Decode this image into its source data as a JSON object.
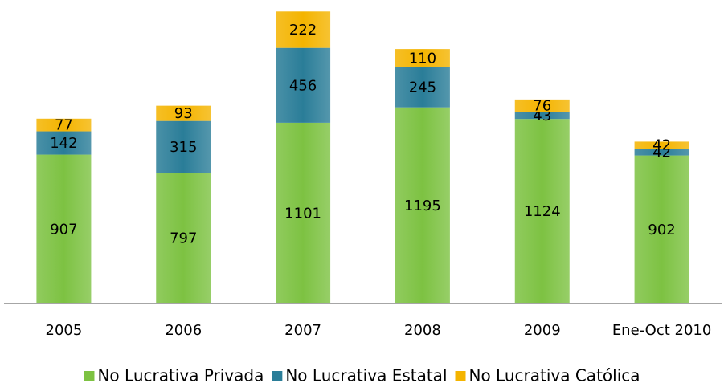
{
  "chart_data": {
    "type": "stacked_bar",
    "categories": [
      "2005",
      "2006",
      "2007",
      "2008",
      "2009",
      "Ene-Oct 2010"
    ],
    "series": [
      {
        "name": "No Lucrativa Privada",
        "color": "#7dc242",
        "values": [
          907,
          797,
          1101,
          1195,
          1124,
          902
        ]
      },
      {
        "name": "No Lucrativa Estatal",
        "color": "#2a7d98",
        "values": [
          142,
          315,
          456,
          245,
          43,
          42
        ]
      },
      {
        "name": "No Lucrativa Católica",
        "color": "#f4b400",
        "values": [
          77,
          93,
          222,
          110,
          76,
          42
        ]
      }
    ],
    "ylim": [
      0,
      1800
    ],
    "legend": "bottom"
  }
}
